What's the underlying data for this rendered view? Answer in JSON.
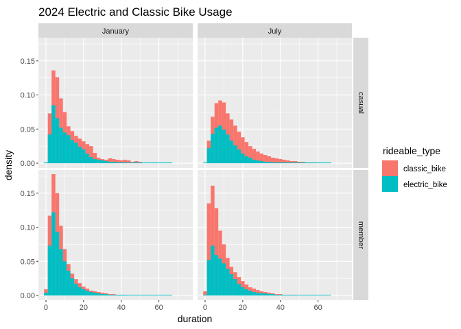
{
  "chart_data": {
    "type": "bar",
    "subtype": "faceted-stacked-histogram",
    "title": "2024 Electric and Classic Bike Usage",
    "xlabel": "duration",
    "ylabel": "density",
    "facet_columns": [
      "January",
      "July"
    ],
    "facet_rows": [
      "casual",
      "member"
    ],
    "x_ticks": [
      0,
      20,
      40,
      60
    ],
    "y_ticks": [
      0.0,
      0.05,
      0.1,
      0.15
    ],
    "y_tick_labels": [
      "0.00",
      "0.05",
      "0.10",
      "0.15"
    ],
    "xlim": [
      -4,
      78
    ],
    "ylim": [
      -0.007,
      0.184
    ],
    "bin_start": -1,
    "bin_width": 2,
    "legend": {
      "title": "rideable_type",
      "position": "right",
      "entries": [
        {
          "label": "classic_bike",
          "color": "#F8766D"
        },
        {
          "label": "electric_bike",
          "color": "#00BFC4"
        }
      ]
    },
    "grid": true,
    "panels": [
      {
        "column": "January",
        "row": "casual",
        "series": [
          {
            "name": "electric_bike",
            "values": [
              0.001,
              0.042,
              0.085,
              0.066,
              0.052,
              0.045,
              0.041,
              0.034,
              0.03,
              0.024,
              0.02,
              0.014,
              0.009,
              0.006,
              0.005,
              0.004,
              0.003,
              0.002,
              0.002,
              0.001,
              0.001,
              0.001,
              0.0,
              0.0,
              0.0,
              0.0,
              0.0,
              0.0,
              0.0,
              0.0,
              0.0,
              0.0,
              0.0,
              0.0
            ]
          },
          {
            "name": "classic_bike",
            "values": [
              0.0,
              0.073,
              0.136,
              0.126,
              0.095,
              0.075,
              0.054,
              0.047,
              0.04,
              0.036,
              0.032,
              0.028,
              0.025,
              0.015,
              0.008,
              0.006,
              0.005,
              0.007,
              0.006,
              0.005,
              0.004,
              0.005,
              0.004,
              0.002,
              0.003,
              0.002,
              0.0,
              0.0,
              0.0,
              0.0,
              0.0,
              0.0,
              0.0,
              0.0
            ]
          }
        ]
      },
      {
        "column": "July",
        "row": "casual",
        "series": [
          {
            "name": "electric_bike",
            "values": [
              0.0,
              0.022,
              0.043,
              0.052,
              0.055,
              0.049,
              0.042,
              0.033,
              0.026,
              0.02,
              0.014,
              0.01,
              0.008,
              0.005,
              0.004,
              0.003,
              0.002,
              0.002,
              0.001,
              0.001,
              0.001,
              0.001,
              0.0,
              0.0,
              0.0,
              0.0,
              0.0,
              0.0,
              0.0,
              0.0,
              0.0,
              0.0,
              0.0,
              0.0
            ]
          },
          {
            "name": "classic_bike",
            "values": [
              0.0,
              0.033,
              0.068,
              0.088,
              0.092,
              0.089,
              0.073,
              0.064,
              0.055,
              0.046,
              0.038,
              0.031,
              0.025,
              0.021,
              0.017,
              0.014,
              0.012,
              0.01,
              0.008,
              0.007,
              0.006,
              0.005,
              0.004,
              0.003,
              0.003,
              0.002,
              0.002,
              0.001,
              0.001,
              0.001,
              0.0,
              0.0,
              0.0,
              0.0
            ]
          }
        ]
      },
      {
        "column": "January",
        "row": "member",
        "series": [
          {
            "name": "electric_bike",
            "values": [
              0.004,
              0.073,
              0.122,
              0.093,
              0.068,
              0.05,
              0.036,
              0.025,
              0.017,
              0.012,
              0.009,
              0.007,
              0.005,
              0.004,
              0.003,
              0.002,
              0.002,
              0.001,
              0.001,
              0.001,
              0.001,
              0.001,
              0.0,
              0.0,
              0.0,
              0.0,
              0.0,
              0.0,
              0.0,
              0.0,
              0.0,
              0.0,
              0.0,
              0.0
            ]
          },
          {
            "name": "classic_bike",
            "values": [
              0.009,
              0.117,
              0.178,
              0.15,
              0.102,
              0.068,
              0.046,
              0.032,
              0.024,
              0.018,
              0.013,
              0.01,
              0.007,
              0.006,
              0.005,
              0.004,
              0.003,
              0.002,
              0.002,
              0.001,
              0.001,
              0.001,
              0.0,
              0.0,
              0.0,
              0.0,
              0.0,
              0.0,
              0.0,
              0.0,
              0.0,
              0.0,
              0.0,
              0.0
            ]
          }
        ]
      },
      {
        "column": "July",
        "row": "member",
        "series": [
          {
            "name": "electric_bike",
            "values": [
              0.001,
              0.052,
              0.073,
              0.059,
              0.054,
              0.047,
              0.039,
              0.031,
              0.024,
              0.017,
              0.012,
              0.009,
              0.007,
              0.005,
              0.004,
              0.003,
              0.003,
              0.002,
              0.002,
              0.001,
              0.001,
              0.001,
              0.0,
              0.0,
              0.0,
              0.0,
              0.0,
              0.0,
              0.0,
              0.0,
              0.0,
              0.0,
              0.0,
              0.0
            ]
          },
          {
            "name": "classic_bike",
            "values": [
              0.006,
              0.135,
              0.161,
              0.128,
              0.095,
              0.075,
              0.055,
              0.042,
              0.034,
              0.027,
              0.021,
              0.016,
              0.012,
              0.01,
              0.008,
              0.006,
              0.005,
              0.004,
              0.003,
              0.002,
              0.002,
              0.001,
              0.001,
              0.001,
              0.001,
              0.0,
              0.0,
              0.0,
              0.0,
              0.0,
              0.0,
              0.0,
              0.0,
              0.0
            ]
          }
        ]
      }
    ]
  },
  "style": {
    "panel_background": "#EBEBEB",
    "grid_major": "#FFFFFF",
    "strip_background": "#D9D9D9",
    "classic_color": "#F8766D",
    "electric_color": "#00BFC4"
  }
}
